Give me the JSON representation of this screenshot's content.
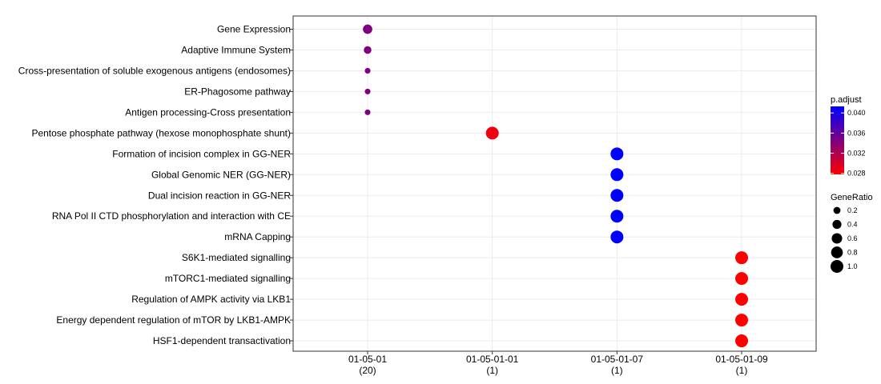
{
  "chart_data": {
    "type": "scatter",
    "title": "",
    "xlabel": "",
    "ylabel": "",
    "x_categories": [
      {
        "label": "01-05-01",
        "count": "(20)"
      },
      {
        "label": "01-05-01-01",
        "count": "(1)"
      },
      {
        "label": "01-05-01-07",
        "count": "(1)"
      },
      {
        "label": "01-05-01-09",
        "count": "(1)"
      }
    ],
    "y_categories": [
      "Gene Expression",
      "Adaptive Immune System",
      "Cross-presentation of soluble exogenous antigens (endosomes)",
      "ER-Phagosome pathway",
      "Antigen processing-Cross presentation",
      "Pentose phosphate pathway (hexose monophosphate shunt)",
      "Formation of incision complex in GG-NER",
      "Global Genomic NER (GG-NER)",
      "Dual incision reaction in GG-NER",
      "RNA Pol II CTD phosphorylation and interaction with CE",
      "mRNA Capping",
      "S6K1-mediated signalling",
      "mTORC1-mediated signalling",
      "Regulation of AMPK activity via LKB1",
      "Energy dependent regulation of mTOR by LKB1-AMPK",
      "HSF1-dependent transactivation"
    ],
    "points": [
      {
        "x": "01-05-01",
        "y": "Gene Expression",
        "gene_ratio": 0.45,
        "p_adjust": 0.0345
      },
      {
        "x": "01-05-01",
        "y": "Adaptive Immune System",
        "gene_ratio": 0.25,
        "p_adjust": 0.0345
      },
      {
        "x": "01-05-01",
        "y": "Cross-presentation of soluble exogenous antigens (endosomes)",
        "gene_ratio": 0.1,
        "p_adjust": 0.0345
      },
      {
        "x": "01-05-01",
        "y": "ER-Phagosome pathway",
        "gene_ratio": 0.1,
        "p_adjust": 0.0345
      },
      {
        "x": "01-05-01",
        "y": "Antigen processing-Cross presentation",
        "gene_ratio": 0.1,
        "p_adjust": 0.0345
      },
      {
        "x": "01-05-01-01",
        "y": "Pentose phosphate pathway (hexose monophosphate shunt)",
        "gene_ratio": 1.0,
        "p_adjust": 0.0285
      },
      {
        "x": "01-05-01-07",
        "y": "Formation of incision complex in GG-NER",
        "gene_ratio": 1.0,
        "p_adjust": 0.0413
      },
      {
        "x": "01-05-01-07",
        "y": "Global Genomic NER (GG-NER)",
        "gene_ratio": 1.0,
        "p_adjust": 0.0413
      },
      {
        "x": "01-05-01-07",
        "y": "Dual incision reaction in GG-NER",
        "gene_ratio": 1.0,
        "p_adjust": 0.0413
      },
      {
        "x": "01-05-01-07",
        "y": "RNA Pol II CTD phosphorylation and interaction with CE",
        "gene_ratio": 1.0,
        "p_adjust": 0.0413
      },
      {
        "x": "01-05-01-07",
        "y": "mRNA Capping",
        "gene_ratio": 1.0,
        "p_adjust": 0.0413
      },
      {
        "x": "01-05-01-09",
        "y": "S6K1-mediated signalling",
        "gene_ratio": 1.0,
        "p_adjust": 0.0278
      },
      {
        "x": "01-05-01-09",
        "y": "mTORC1-mediated signalling",
        "gene_ratio": 1.0,
        "p_adjust": 0.0278
      },
      {
        "x": "01-05-01-09",
        "y": "Regulation of AMPK activity via LKB1",
        "gene_ratio": 1.0,
        "p_adjust": 0.0278
      },
      {
        "x": "01-05-01-09",
        "y": "Energy dependent regulation of mTOR by LKB1-AMPK",
        "gene_ratio": 1.0,
        "p_adjust": 0.0278
      },
      {
        "x": "01-05-01-09",
        "y": "HSF1-dependent transactivation",
        "gene_ratio": 1.0,
        "p_adjust": 0.0278
      }
    ],
    "grid": true,
    "legend": {
      "placement": "right",
      "color": {
        "title": "p.adjust",
        "breaks": [
          "0.040",
          "0.036",
          "0.032",
          "0.028"
        ],
        "range": [
          0.0278,
          0.0413
        ],
        "low_color": "#ff0000",
        "high_color": "#0000ff"
      },
      "size": {
        "title": "GeneRatio",
        "breaks": [
          "0.2",
          "0.4",
          "0.6",
          "0.8",
          "1.0"
        ]
      }
    }
  }
}
